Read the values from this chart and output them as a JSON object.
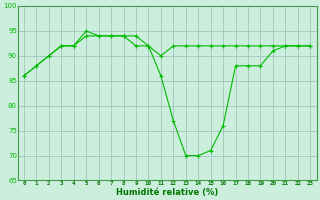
{
  "x": [
    0,
    1,
    2,
    3,
    4,
    5,
    6,
    7,
    8,
    9,
    10,
    11,
    12,
    13,
    14,
    15,
    16,
    17,
    18,
    19,
    20,
    21,
    22,
    23
  ],
  "line1": [
    86,
    88,
    90,
    92,
    92,
    94,
    94,
    94,
    94,
    94,
    92,
    90,
    92,
    92,
    92,
    92,
    92,
    92,
    92,
    92,
    92,
    92,
    92,
    92
  ],
  "line2": [
    86,
    88,
    90,
    92,
    92,
    95,
    94,
    94,
    94,
    92,
    92,
    86,
    77,
    70,
    70,
    71,
    76,
    88,
    88,
    88,
    91,
    92,
    92,
    92
  ],
  "ylim": [
    65,
    100
  ],
  "xlim": [
    -0.5,
    23.5
  ],
  "yticks": [
    65,
    70,
    75,
    80,
    85,
    90,
    95,
    100
  ],
  "xticks": [
    0,
    1,
    2,
    3,
    4,
    5,
    6,
    7,
    8,
    9,
    10,
    11,
    12,
    13,
    14,
    15,
    16,
    17,
    18,
    19,
    20,
    21,
    22,
    23
  ],
  "line_color": "#00bb00",
  "bg_color": "#cceedd",
  "grid_color": "#99bbbb",
  "xlabel": "Humidité relative (%)",
  "xlabel_color": "#007700"
}
